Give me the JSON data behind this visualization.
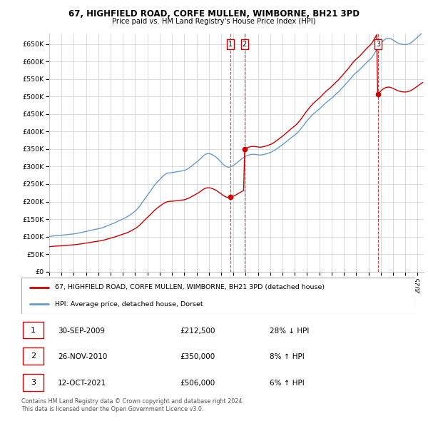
{
  "title": "67, HIGHFIELD ROAD, CORFE MULLEN, WIMBORNE, BH21 3PD",
  "subtitle": "Price paid vs. HM Land Registry's House Price Index (HPI)",
  "xlim_start": 1995.0,
  "xlim_end": 2025.5,
  "ylim": [
    0,
    680000
  ],
  "yticks": [
    0,
    50000,
    100000,
    150000,
    200000,
    250000,
    300000,
    350000,
    400000,
    450000,
    500000,
    550000,
    600000,
    650000
  ],
  "ytick_labels": [
    "£0",
    "£50K",
    "£100K",
    "£150K",
    "£200K",
    "£250K",
    "£300K",
    "£350K",
    "£400K",
    "£450K",
    "£500K",
    "£550K",
    "£600K",
    "£650K"
  ],
  "hpi_values": [
    100000,
    100500,
    101000,
    101500,
    101800,
    102000,
    102200,
    102500,
    102800,
    103000,
    103200,
    103500,
    103700,
    104000,
    104200,
    104500,
    104800,
    105200,
    105500,
    105800,
    106200,
    106500,
    106800,
    107200,
    107600,
    108000,
    108500,
    109000,
    109600,
    110200,
    110800,
    111500,
    112200,
    112800,
    113400,
    114000,
    114600,
    115200,
    115900,
    116500,
    117200,
    117900,
    118600,
    119300,
    120000,
    120700,
    121200,
    121700,
    122300,
    122900,
    123600,
    124400,
    125300,
    126300,
    127400,
    128600,
    129900,
    131200,
    132400,
    133500,
    134500,
    135500,
    136600,
    137800,
    139100,
    140500,
    141900,
    143400,
    144900,
    146400,
    147800,
    149100,
    150400,
    151700,
    153100,
    154600,
    156200,
    157900,
    159800,
    161800,
    163900,
    166100,
    168300,
    170500,
    173000,
    175700,
    178700,
    182000,
    185600,
    189500,
    193600,
    197800,
    202100,
    206300,
    210300,
    214100,
    218000,
    222000,
    226200,
    230500,
    234800,
    239000,
    243000,
    246800,
    250400,
    253800,
    257000,
    260000,
    263000,
    266000,
    269000,
    272000,
    274500,
    277000,
    279000,
    280500,
    281500,
    282000,
    282500,
    283000,
    283000,
    283500,
    284000,
    284500,
    285000,
    285500,
    286000,
    286500,
    287000,
    287500,
    288000,
    288500,
    289000,
    290000,
    291500,
    293000,
    294800,
    296800,
    299000,
    301300,
    303600,
    306000,
    308300,
    310500,
    312700,
    315000,
    317500,
    320200,
    323100,
    326200,
    329200,
    331800,
    333900,
    335600,
    336700,
    337200,
    337200,
    336800,
    335900,
    334600,
    333000,
    331100,
    329200,
    327100,
    324700,
    321900,
    318900,
    315700,
    312600,
    309600,
    306700,
    304100,
    302000,
    300300,
    299100,
    298500,
    298600,
    299300,
    300400,
    301800,
    303500,
    305400,
    307600,
    309900,
    312300,
    314800,
    317300,
    319700,
    322000,
    324200,
    326200,
    328000,
    329600,
    331000,
    332200,
    333200,
    334000,
    334600,
    335000,
    335200,
    335200,
    334900,
    334600,
    334100,
    333600,
    333300,
    333200,
    333400,
    333700,
    334200,
    334900,
    335600,
    336400,
    337300,
    338200,
    339200,
    340300,
    341600,
    343000,
    344600,
    346300,
    348200,
    350200,
    352200,
    354300,
    356400,
    358500,
    360600,
    362700,
    364900,
    367200,
    369600,
    372000,
    374400,
    376800,
    379100,
    381400,
    383600,
    385800,
    388000,
    390300,
    392600,
    395200,
    398000,
    401100,
    404600,
    408300,
    412200,
    416200,
    420200,
    423900,
    427500,
    430900,
    434300,
    437700,
    441100,
    444400,
    447500,
    450300,
    452900,
    455300,
    457600,
    459900,
    462200,
    464700,
    467400,
    470300,
    473200,
    476100,
    478900,
    481600,
    484000,
    486300,
    488500,
    490700,
    493100,
    495700,
    498500,
    501300,
    504000,
    506600,
    509100,
    511700,
    514400,
    517400,
    520600,
    523900,
    527200,
    530400,
    533500,
    536600,
    539700,
    543000,
    546400,
    550000,
    553600,
    557100,
    560500,
    563600,
    566400,
    569000,
    571400,
    573800,
    576300,
    579000,
    581900,
    584900,
    588000,
    591100,
    594100,
    596900,
    599500,
    602000,
    604600,
    607500,
    611000,
    615000,
    619500,
    624400,
    629500,
    634600,
    639600,
    644100,
    648300,
    652200,
    655600,
    658700,
    661200,
    663300,
    664800,
    665900,
    666400,
    666400,
    665900,
    664900,
    663500,
    661800,
    660000,
    658100,
    656300,
    654600,
    653100,
    651900,
    650900,
    650100,
    649500,
    649100,
    648900,
    648900,
    649200,
    649800,
    650700,
    651900,
    653400,
    655200,
    657300,
    659700,
    662300,
    665000,
    667700,
    670400,
    673100,
    675700,
    678200,
    680700,
    683000
  ],
  "property_line_color": "#cc0000",
  "hpi_line_color": "#6699cc",
  "sale_transactions": [
    {
      "date_x": 2009.75,
      "price": 212500,
      "label": "1"
    },
    {
      "date_x": 2010.9,
      "price": 350000,
      "label": "2"
    },
    {
      "date_x": 2021.78,
      "price": 506000,
      "label": "3"
    }
  ],
  "legend_entries": [
    "67, HIGHFIELD ROAD, CORFE MULLEN, WIMBORNE, BH21 3PD (detached house)",
    "HPI: Average price, detached house, Dorset"
  ],
  "table_rows": [
    [
      "1",
      "30-SEP-2009",
      "£212,500",
      "28% ↓ HPI"
    ],
    [
      "2",
      "26-NOV-2010",
      "£350,000",
      "8% ↑ HPI"
    ],
    [
      "3",
      "12-OCT-2021",
      "£506,000",
      "6% ↑ HPI"
    ]
  ],
  "footer": "Contains HM Land Registry data © Crown copyright and database right 2024.\nThis data is licensed under the Open Government Licence v3.0.",
  "background_color": "#ffffff",
  "grid_color": "#cccccc",
  "xticks": [
    1995,
    1996,
    1997,
    1998,
    1999,
    2000,
    2001,
    2002,
    2003,
    2004,
    2005,
    2006,
    2007,
    2008,
    2009,
    2010,
    2011,
    2012,
    2013,
    2014,
    2015,
    2016,
    2017,
    2018,
    2019,
    2020,
    2021,
    2022,
    2023,
    2024,
    2025
  ]
}
